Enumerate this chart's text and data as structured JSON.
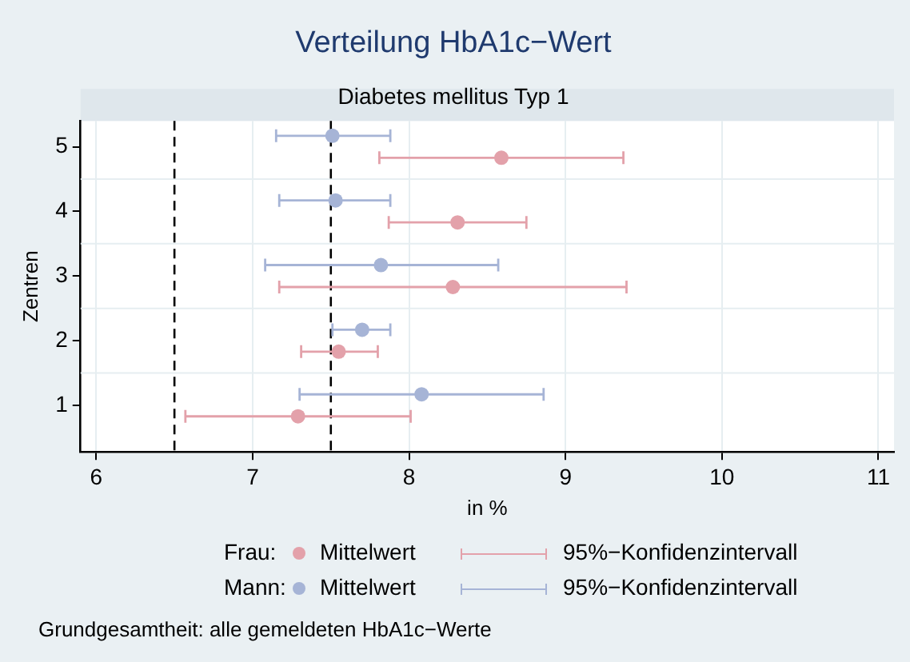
{
  "chart_data": {
    "type": "scatter",
    "orientation": "horizontal",
    "title": "Verteilung HbA1c−Wert",
    "subtitle": "Diabetes mellitus Typ 1",
    "xlabel": "in %",
    "ylabel": "Zentren",
    "categories": [
      "5",
      "4",
      "3",
      "2",
      "1"
    ],
    "series": [
      {
        "name": "Mann:",
        "color": "#a6b4d6",
        "values": [
          7.51,
          7.53,
          7.82,
          7.7,
          8.08
        ],
        "errors": [
          [
            7.15,
            7.88
          ],
          [
            7.17,
            7.88
          ],
          [
            7.08,
            8.57
          ],
          [
            7.51,
            7.88
          ],
          [
            7.3,
            8.86
          ]
        ]
      },
      {
        "name": "Frau:",
        "color": "#e3a1aa",
        "values": [
          8.59,
          8.31,
          8.28,
          7.55,
          7.29
        ],
        "errors": [
          [
            7.81,
            9.37
          ],
          [
            7.87,
            8.75
          ],
          [
            7.17,
            9.39
          ],
          [
            7.31,
            7.8
          ],
          [
            6.57,
            8.01
          ]
        ]
      }
    ],
    "xlim": [
      5.9,
      11.1
    ],
    "xticks": [
      6,
      7,
      8,
      9,
      10,
      11
    ],
    "ref_lines": [
      {
        "axis": "x",
        "value": 6.5,
        "color": "#000000",
        "line_style": "dashed"
      },
      {
        "axis": "x",
        "value": 7.5,
        "color": "#000000",
        "line_style": "dashed"
      }
    ],
    "grid": true,
    "legend": "bottom",
    "marker": "circle",
    "annotations": [
      "Mittelwert",
      "95%−Konfidenzintervall",
      "Grundgesamtheit: alle gemeldeten HbA1c−Werte"
    ]
  }
}
